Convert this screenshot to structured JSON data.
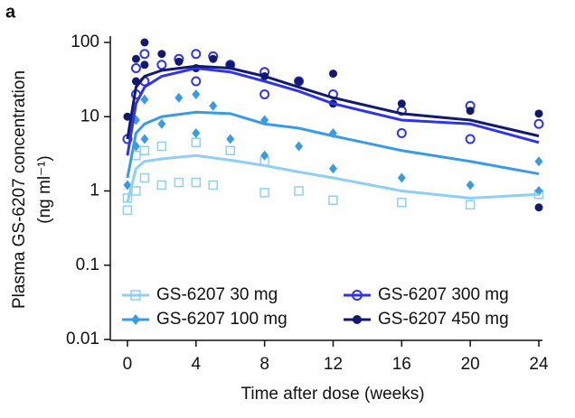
{
  "chart_data": {
    "type": "line",
    "panel_label": "a",
    "y_label": "Plasma GS-6207 concentration",
    "y_label_units": "(ng ml⁻¹)",
    "x_label": "Time after dose (weeks)",
    "log_y": true,
    "xlim": [
      -1,
      24
    ],
    "ylim": [
      0.01,
      100
    ],
    "xticks": [
      0,
      4,
      8,
      12,
      16,
      20,
      24
    ],
    "yticks": [
      0.01,
      0.1,
      1,
      10,
      100
    ],
    "legend": "lower",
    "x": [
      0,
      0.5,
      1,
      2,
      4,
      6,
      8,
      10,
      12,
      16,
      20,
      24
    ],
    "series": [
      {
        "name": "GS-6207 30 mg",
        "color": "#8ecff3",
        "marker": "open-square",
        "values": [
          0.7,
          2.0,
          2.5,
          2.7,
          3.0,
          2.6,
          2.2,
          1.8,
          1.5,
          1.0,
          0.8,
          0.9
        ],
        "scatter_x": [
          0,
          0,
          0.5,
          0.5,
          1,
          1,
          2,
          2,
          3,
          4,
          4,
          5,
          6,
          8,
          8,
          10,
          12,
          16,
          20,
          24
        ],
        "scatter_y": [
          0.55,
          0.8,
          1.0,
          3.0,
          1.5,
          3.5,
          1.2,
          4.0,
          1.3,
          1.3,
          4.5,
          1.2,
          3.5,
          0.95,
          2.5,
          1.0,
          0.75,
          0.7,
          0.65,
          0.9
        ]
      },
      {
        "name": "GS-6207 100 mg",
        "color": "#3b9be2",
        "marker": "diamond",
        "values": [
          1.5,
          6,
          8,
          10,
          11.5,
          11,
          8,
          7,
          5.5,
          3.5,
          2.5,
          1.7
        ],
        "scatter_x": [
          0,
          0.5,
          0.5,
          1,
          1,
          2,
          3,
          4,
          4,
          5,
          6,
          8,
          8,
          10,
          12,
          12,
          16,
          20,
          24,
          24
        ],
        "scatter_y": [
          1.2,
          4,
          9,
          5,
          17,
          8,
          18,
          6,
          20,
          14,
          5,
          3,
          9,
          4,
          2,
          6,
          1.5,
          1.2,
          1.0,
          2.5
        ]
      },
      {
        "name": "GS-6207 300 mg",
        "color": "#2f35e6",
        "marker": "open-circle",
        "values": [
          3,
          15,
          25,
          35,
          45,
          40,
          30,
          22,
          15,
          9,
          8,
          4.5
        ],
        "scatter_x": [
          0,
          0.5,
          0.5,
          1,
          1,
          2,
          3,
          4,
          4,
          5,
          6,
          8,
          8,
          10,
          12,
          16,
          16,
          20,
          20,
          24
        ],
        "scatter_y": [
          5,
          20,
          45,
          30,
          70,
          50,
          60,
          30,
          70,
          65,
          50,
          40,
          20,
          30,
          20,
          12,
          6,
          14,
          5,
          8
        ]
      },
      {
        "name": "GS-6207 450 mg",
        "color": "#131a6b",
        "marker": "circle",
        "values": [
          5,
          25,
          35,
          42,
          48,
          45,
          35,
          25,
          18,
          11,
          9,
          5.5
        ],
        "scatter_x": [
          0,
          0.5,
          0.5,
          1,
          1,
          2,
          3,
          4,
          5,
          6,
          8,
          10,
          12,
          12,
          16,
          20,
          24,
          24
        ],
        "scatter_y": [
          10,
          60,
          30,
          100,
          50,
          70,
          55,
          45,
          60,
          50,
          35,
          30,
          38,
          15,
          15,
          12,
          11,
          0.6
        ]
      }
    ]
  }
}
